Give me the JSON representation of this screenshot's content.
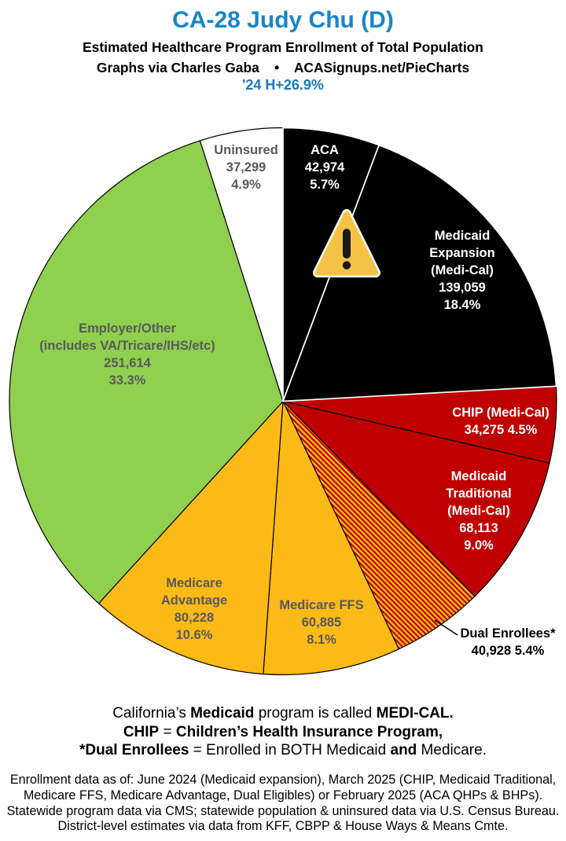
{
  "header": {
    "title": "CA-28 Judy Chu (D)",
    "subtitle": "Estimated Healthcare Program Enrollment of Total Population",
    "credit": "Graphs via Charles Gaba    •    ACASignups.net/PieCharts",
    "change_note": "'24 H+26.9%"
  },
  "colors": {
    "title_blue": "#1885C8",
    "change_blue": "#1878BE",
    "pie_black": "#000000",
    "pie_dark_red": "#C00000",
    "pie_gold": "#FBBA16",
    "pie_green": "#90D04F",
    "gray_label_text": "#595959",
    "white": "#FFFFFF",
    "warning_yellow": "#F4C245"
  },
  "chart_data": {
    "type": "pie",
    "title": "Estimated Healthcare Program Enrollment of Total Population",
    "start_angle_deg": 0,
    "direction": "clockwise",
    "slices": [
      {
        "id": "aca",
        "label": "ACA",
        "value": 42974,
        "pct": 5.7,
        "color": "#000000",
        "border": "#FFFFFF",
        "text_color": "#FFFFFF",
        "label_lines": [
          "ACA",
          "42,974",
          "5.7%"
        ]
      },
      {
        "id": "medex",
        "label": "Medicaid Expansion (Medi-Cal)",
        "value": 139059,
        "pct": 18.4,
        "color": "#000000",
        "border": "#FFFFFF",
        "text_color": "#FFFFFF",
        "label_lines": [
          "Medicaid",
          "Expansion",
          "(Medi-Cal)",
          "139,059",
          "18.4%"
        ]
      },
      {
        "id": "chip",
        "label": "CHIP (Medi-Cal)",
        "value": 34275,
        "pct": 4.5,
        "color": "#C00000",
        "border": "#000000",
        "text_color": "#FFFFFF",
        "label_lines": [
          "CHIP (Medi-Cal)",
          "34,275 4.5%"
        ]
      },
      {
        "id": "medtrad",
        "label": "Medicaid Traditional (Medi-Cal)",
        "value": 68113,
        "pct": 9.0,
        "color": "#C00000",
        "border": "#000000",
        "text_color": "#FFFFFF",
        "label_lines": [
          "Medicaid",
          "Traditional",
          "(Medi-Cal)",
          "68,113",
          "9.0%"
        ]
      },
      {
        "id": "dual",
        "label": "Dual Enrollees*",
        "value": 40928,
        "pct": 5.4,
        "color": {
          "pattern": "diagonal-stripes",
          "colors": [
            "#FBBA16",
            "#C00000"
          ]
        },
        "border": "#000000",
        "text_color": "#000000",
        "label_lines": [
          "Dual Enrollees*",
          "40,928 5.4%"
        ]
      },
      {
        "id": "ffs",
        "label": "Medicare FFS",
        "value": 60885,
        "pct": 8.1,
        "color": "#FBBA16",
        "border": "#000000",
        "text_color": "#595959",
        "label_lines": [
          "Medicare FFS",
          "60,885",
          "8.1%"
        ]
      },
      {
        "id": "medadv",
        "label": "Medicare Advantage",
        "value": 80228,
        "pct": 10.6,
        "color": "#FBBA16",
        "border": "#000000",
        "text_color": "#595959",
        "label_lines": [
          "Medicare",
          "Advantage",
          "80,228",
          "10.6%"
        ]
      },
      {
        "id": "employer",
        "label": "Employer/Other (includes VA/Tricare/IHS/etc)",
        "value": 251614,
        "pct": 33.3,
        "color": "#90D04F",
        "border": "#000000",
        "text_color": "#595959",
        "label_lines": [
          "Employer/Other",
          "(includes VA/Tricare/IHS/etc)",
          "251,614",
          "33.3%"
        ]
      },
      {
        "id": "uninsured",
        "label": "Uninsured",
        "value": 37299,
        "pct": 4.9,
        "color": "#FFFFFF",
        "border": "#000000",
        "text_color": "#595959",
        "label_lines": [
          "Uninsured",
          "37,299",
          "4.9%"
        ]
      }
    ]
  },
  "notes": {
    "lines": [
      [
        {
          "t": "California’s "
        },
        {
          "t": "Medicaid",
          "b": true
        },
        {
          "t": " program is called "
        },
        {
          "t": "MEDI-CAL.",
          "b": true
        }
      ],
      [
        {
          "t": "CHIP",
          "b": true
        },
        {
          "t": " = "
        },
        {
          "t": "Children’s Health Insurance Program,",
          "b": true
        }
      ],
      [
        {
          "t": "*Dual Enrollees",
          "b": true
        },
        {
          "t": " = Enrolled in BOTH Medicaid "
        },
        {
          "t": "and",
          "b": true
        },
        {
          "t": " Medicare."
        }
      ]
    ]
  },
  "footer": {
    "lines": [
      "Enrollment data as of: June 2024 (Medicaid expansion), March 2025 (CHIP, Medicaid Traditional,",
      "Medicare FFS, Medicare Advantage, Dual Eligibles) or February 2025 (ACA QHPs & BHPs).",
      "Statewide program data via CMS; statewide population & uninsured data via U.S. Census Bureau.",
      "District-level estimates via data from KFF, CBPP & House Ways & Means Cmte."
    ]
  }
}
